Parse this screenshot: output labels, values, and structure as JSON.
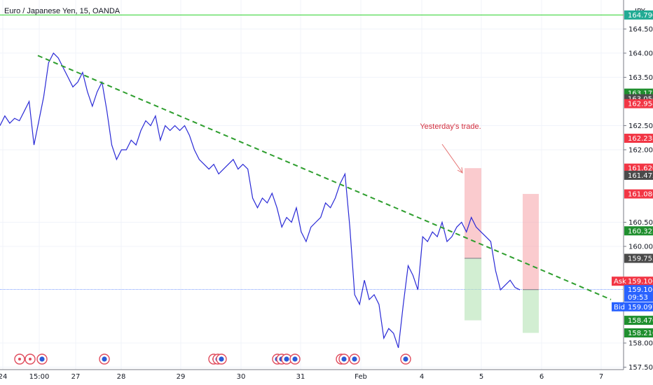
{
  "chart_data": {
    "type": "line",
    "title": "Euro / Japanese Yen, 15, OANDA",
    "currency": "JPY",
    "x_ticks": [
      "24",
      "15:00",
      "27",
      "28",
      "29",
      "30",
      "31",
      "Feb",
      "4",
      "5",
      "6",
      "7"
    ],
    "ylim": [
      157.45,
      165.1
    ],
    "y_ticks": [
      "164.500",
      "164.000",
      "163.500",
      "162.500",
      "162.000",
      "160.500",
      "160.000",
      "158.000",
      "157.500"
    ],
    "grid": true,
    "series": [
      {
        "values": [
          162.5,
          162.7,
          162.55,
          162.65,
          162.6,
          162.8,
          163.0,
          162.1,
          162.6,
          163.1,
          163.8,
          164.0,
          163.9,
          163.7,
          163.5,
          163.3,
          163.4,
          163.6,
          163.2,
          162.9,
          163.2,
          163.4,
          162.8,
          162.1,
          161.8,
          162.0,
          162.0,
          162.2,
          162.1,
          162.4,
          162.6,
          162.5,
          162.7,
          162.2,
          162.5,
          162.4,
          162.5,
          162.4,
          162.5,
          162.3,
          162.0,
          161.8,
          161.7,
          161.6,
          161.7,
          161.5,
          161.6,
          161.7,
          161.8,
          161.6,
          161.7,
          161.6,
          161.0,
          160.8,
          161.0,
          160.9,
          161.1,
          160.8,
          160.4,
          160.6,
          160.5,
          160.8,
          160.3,
          160.1,
          160.4,
          160.5,
          160.6,
          160.9,
          160.8,
          161.0,
          161.3,
          161.5,
          160.4,
          159.0,
          158.8,
          159.3,
          158.9,
          159.0,
          158.8,
          158.1,
          158.3,
          158.2,
          157.9,
          158.8,
          159.6,
          159.4,
          159.1,
          160.2,
          160.1,
          160.3,
          160.2,
          160.5,
          160.1,
          160.2,
          160.4,
          160.5,
          160.3,
          160.6,
          160.4,
          160.3,
          160.2,
          160.1,
          159.5,
          159.1,
          159.2,
          159.3,
          159.15,
          159.1
        ]
      }
    ],
    "trendline_start": 163.95,
    "trendline_end": 158.9,
    "horizontal_line": 164.79,
    "current_price": 159.106,
    "price_labels": [
      {
        "text": "164.790",
        "price": 164.79,
        "color": "#22ab94"
      },
      {
        "text": "163.172",
        "price": 163.172,
        "color": "#1f8f2e"
      },
      {
        "text": "163.056",
        "price": 163.056,
        "color": "#4a4a4a"
      },
      {
        "text": "162.954",
        "price": 162.954,
        "color": "#f23645"
      },
      {
        "text": "162.238",
        "price": 162.238,
        "color": "#f23645"
      },
      {
        "text": "161.620",
        "price": 161.62,
        "color": "#f23645"
      },
      {
        "text": "161.472",
        "price": 161.472,
        "color": "#4a4a4a"
      },
      {
        "text": "161.086",
        "price": 161.086,
        "color": "#f23645"
      },
      {
        "text": "160.322",
        "price": 160.322,
        "color": "#1f8f2e"
      },
      {
        "text": "159.753",
        "price": 159.753,
        "color": "#4a4a4a"
      },
      {
        "text": "159.112",
        "price": 159.112,
        "color": "#4a4a4a"
      },
      {
        "text": "159.106",
        "price": 159.28,
        "color": "#f23645",
        "prefix": "Ask",
        "prefix_color": "#f23645"
      },
      {
        "text": "159.106",
        "price": 159.106,
        "color": "#2962ff"
      },
      {
        "text": "09:53",
        "price": 158.95,
        "color": "#2962ff"
      },
      {
        "text": "159.097",
        "price": 158.75,
        "color": "#2962ff",
        "prefix": "Bid",
        "prefix_color": "#2962ff"
      },
      {
        "text": "158.470",
        "price": 158.47,
        "color": "#1f8f2e"
      },
      {
        "text": "158.210",
        "price": 158.21,
        "color": "#1f8f2e"
      }
    ],
    "trades": [
      {
        "entry": 159.753,
        "stop": 161.62,
        "target": 158.47
      },
      {
        "entry": 159.106,
        "stop": 161.086,
        "target": 158.21
      }
    ],
    "annotation": "Yesterday's trade."
  }
}
